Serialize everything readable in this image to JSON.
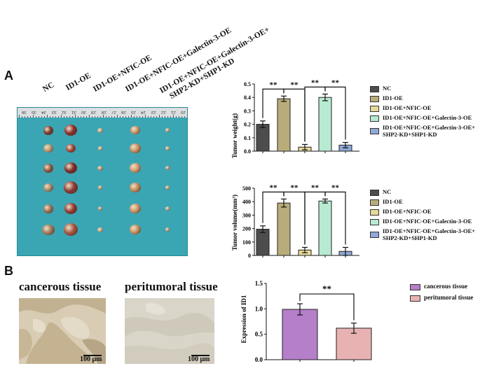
{
  "panels": {
    "a": "A",
    "b": "B"
  },
  "group_labels": [
    "NC",
    "ID1-OE",
    "ID1-OE+NFIC-OE",
    "ID1-OE+NFIC-OE+Galectin-3-OE",
    "ID1-OE+NFIC-OE+Galectin-3-OE+",
    "SHP2-KD+SHP1-KD"
  ],
  "ruler_numbers": [
    "36",
    "35",
    "34",
    "33",
    "32",
    "31",
    "30",
    "29",
    "28",
    "27",
    "26",
    "25",
    "24",
    "23",
    "22",
    "21",
    "20"
  ],
  "colors": {
    "nc": "#4d4d4d",
    "id1": "#b8ad7a",
    "id1_nfic": "#e6d999",
    "id1_nfic_gal": "#b8ead2",
    "full": "#8ea9d6",
    "cancer": "#b57fc9",
    "peri": "#e9b2b2"
  },
  "legend_groups": [
    "NC",
    "ID1-OE",
    "ID1-OE+NFIC-OE",
    "ID1-OE+NFIC-OE+Galectin-3-OE",
    "ID1-OE+NFIC-OE+Galectin-3-OE+",
    "SHP2-KD+SHP1-KD"
  ],
  "tissue": {
    "cancer_title": "cancerous tissue",
    "peri_title": "peritumoral tissue",
    "scale_label": "100 μm"
  },
  "chart_data": [
    {
      "type": "bar",
      "title": "",
      "ylabel": "Tumor weight(g)",
      "xlabel": "",
      "ylim": [
        0,
        0.5
      ],
      "yticks": [
        "0.0",
        "0.1",
        "0.2",
        "0.3",
        "0.4",
        "0.5"
      ],
      "categories": [
        "NC",
        "ID1-OE",
        "ID1-OE+NFIC-OE",
        "ID1-OE+NFIC-OE+Galectin-3-OE",
        "ID1-OE+NFIC-OE+Galectin-3-OE+SHP2-KD+SHP1-KD"
      ],
      "values": [
        0.2,
        0.39,
        0.03,
        0.4,
        0.045
      ],
      "errors": [
        0.025,
        0.02,
        0.02,
        0.025,
        0.02
      ],
      "significance": [
        {
          "pair": [
            0,
            1
          ],
          "label": "**"
        },
        {
          "pair": [
            1,
            2
          ],
          "label": "**"
        },
        {
          "pair": [
            2,
            3
          ],
          "label": "**"
        },
        {
          "pair": [
            3,
            4
          ],
          "label": "**"
        }
      ]
    },
    {
      "type": "bar",
      "title": "",
      "ylabel": "Tumor volume(mm³)",
      "xlabel": "",
      "ylim": [
        0,
        500
      ],
      "yticks": [
        "0",
        "100",
        "200",
        "300",
        "400",
        "500"
      ],
      "categories": [
        "NC",
        "ID1-OE",
        "ID1-OE+NFIC-OE",
        "ID1-OE+NFIC-OE+Galectin-3-OE",
        "ID1-OE+NFIC-OE+Galectin-3-OE+SHP2-KD+SHP1-KD"
      ],
      "values": [
        195,
        390,
        40,
        405,
        30
      ],
      "errors": [
        25,
        30,
        20,
        15,
        30
      ],
      "significance": [
        {
          "pair": [
            0,
            1
          ],
          "label": "**"
        },
        {
          "pair": [
            1,
            2
          ],
          "label": "**"
        },
        {
          "pair": [
            2,
            3
          ],
          "label": "**"
        },
        {
          "pair": [
            3,
            4
          ],
          "label": "**"
        }
      ]
    },
    {
      "type": "bar",
      "title": "",
      "ylabel": "Expression of ID1",
      "xlabel": "",
      "ylim": [
        0,
        1.5
      ],
      "yticks": [
        "0.0",
        "0.5",
        "1.0",
        "1.5"
      ],
      "categories": [
        "cancerous tissue",
        "peritumoral tissue"
      ],
      "values": [
        0.99,
        0.62
      ],
      "errors": [
        0.11,
        0.1
      ],
      "significance": [
        {
          "pair": [
            0,
            1
          ],
          "label": "**"
        }
      ]
    }
  ]
}
